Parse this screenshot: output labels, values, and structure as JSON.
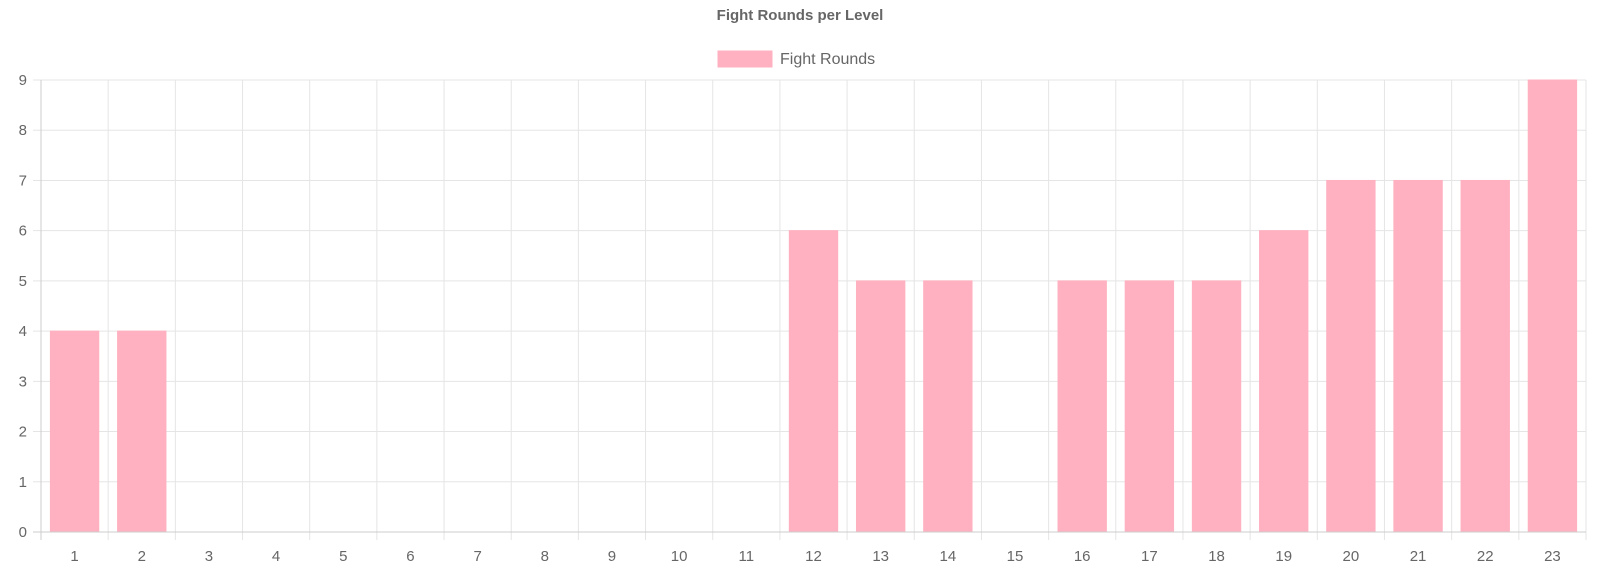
{
  "chart_data": {
    "type": "bar",
    "title": "Fight Rounds per Level",
    "xlabel": "",
    "ylabel": "",
    "categories": [
      "1",
      "2",
      "3",
      "4",
      "5",
      "6",
      "7",
      "8",
      "9",
      "10",
      "11",
      "12",
      "13",
      "14",
      "15",
      "16",
      "17",
      "18",
      "19",
      "20",
      "21",
      "22",
      "23"
    ],
    "series": [
      {
        "name": "Fight Rounds",
        "values": [
          4,
          4,
          0,
          0,
          0,
          0,
          0,
          0,
          0,
          0,
          0,
          6,
          5,
          5,
          0,
          5,
          5,
          5,
          6,
          7,
          7,
          7,
          9
        ]
      }
    ],
    "ylim": [
      0,
      9
    ],
    "yticks": [
      "0",
      "1",
      "2",
      "3",
      "4",
      "5",
      "6",
      "7",
      "8",
      "9"
    ],
    "grid": true,
    "legend_position": "top-center",
    "colors": {
      "bar_fill": "#ffb1c1",
      "bar_border": "#ffb1c1",
      "grid": "#e5e5e5",
      "axis": "#cccccc",
      "text": "#666666"
    }
  }
}
